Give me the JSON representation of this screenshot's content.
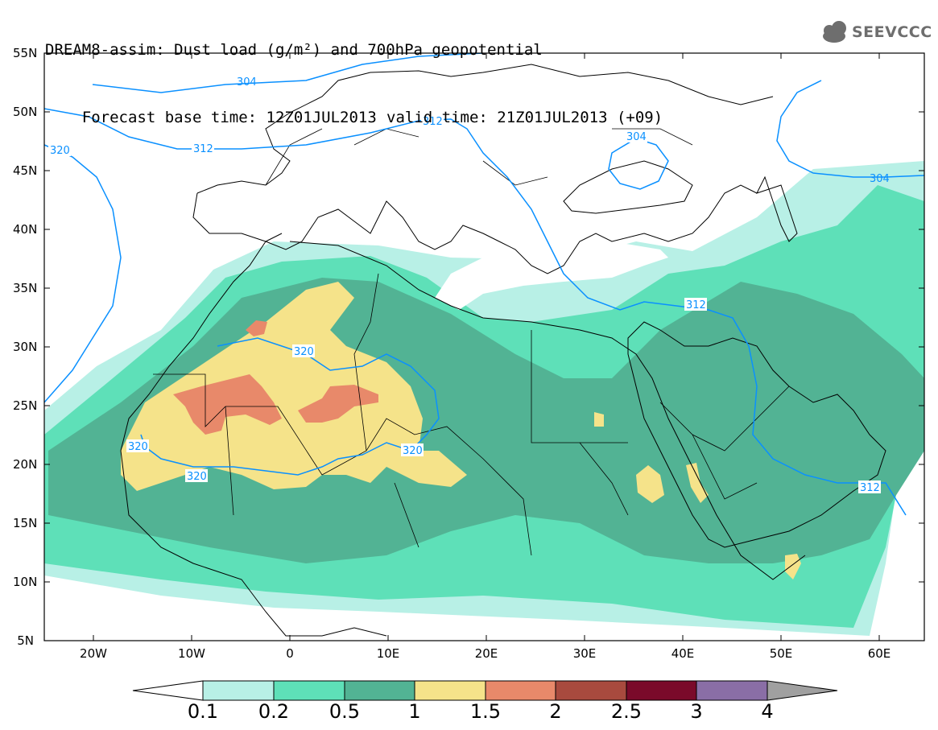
{
  "title": {
    "line1": "DREAM8-assim: Dust load (g/m²) and 700hPa geopotential",
    "base_time": "Forecast base time: 12Z01JUL2013",
    "valid_time": "valid time: 21Z01JUL2013 (+09)"
  },
  "logo": {
    "text": "SEEVCCC",
    "icon": "cloud-icon"
  },
  "axes": {
    "lat_labels": [
      "55N",
      "50N",
      "45N",
      "40N",
      "35N",
      "30N",
      "25N",
      "20N",
      "15N",
      "10N",
      "5N"
    ],
    "lon_labels": [
      "20W",
      "10W",
      "0",
      "10E",
      "20E",
      "30E",
      "40E",
      "50E",
      "60E"
    ]
  },
  "contour_labels": {
    "c304_nw": "304",
    "c312_w": "312",
    "c312_balkan": "312",
    "c304_blacksea": "304",
    "c304_ne": "304",
    "c320_w": "320",
    "c312_iraq": "312",
    "c320_sahara": "320",
    "c320_wa": "320",
    "c320_wb": "320",
    "c320_chad": "320",
    "c312_arabia": "312"
  },
  "colorbar": {
    "labels": [
      "0.1",
      "0.2",
      "0.5",
      "1",
      "1.5",
      "2",
      "2.5",
      "3",
      "4"
    ],
    "colors": [
      "#b8f0e6",
      "#5ee0b8",
      "#52b394",
      "#f5e38a",
      "#e8896a",
      "#a84a3e",
      "#7a0a2a",
      "#8a6ea6",
      "#a0a0a0"
    ]
  },
  "colors": {
    "contour": "#0a90ff",
    "coast": "#000000"
  }
}
